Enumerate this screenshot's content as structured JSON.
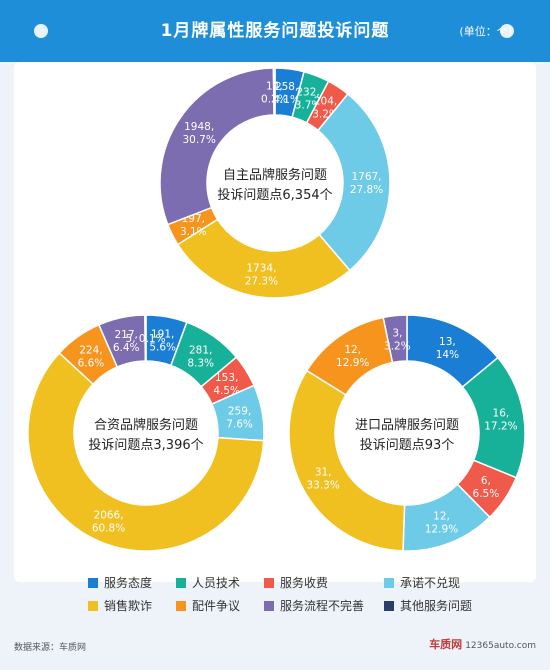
{
  "header": {
    "title": "1月牌属性服务问题投诉问题",
    "unit": "(单位：个)"
  },
  "colors": {
    "服务态度": "#1a7fd4",
    "人员技术": "#17b19a",
    "服务收费": "#f05a4a",
    "承诺不兑现": "#6dcbe8",
    "销售欺诈": "#f0c020",
    "配件争议": "#f7941d",
    "服务流程不完善": "#7b6db0",
    "其他服务问题": "#2b3e6b"
  },
  "chart_data": [
    {
      "type": "pie",
      "center_lines": [
        "自主品牌服务问题",
        "投诉问题点6,354个"
      ],
      "slices": [
        {
          "category": "服务态度",
          "value": 258,
          "label1": "258,",
          "label2": "4.1%"
        },
        {
          "category": "人员技术",
          "value": 232,
          "label1": "232,",
          "label2": "3.7%"
        },
        {
          "category": "服务收费",
          "value": 204,
          "label1": "204,",
          "label2": "3.2%"
        },
        {
          "category": "承诺不兑现",
          "value": 1767,
          "label1": "1767,",
          "label2": "27.8%"
        },
        {
          "category": "销售欺诈",
          "value": 1734,
          "label1": "1734,",
          "label2": "27.3%"
        },
        {
          "category": "配件争议",
          "value": 197,
          "label1": "197,",
          "label2": "3.1%"
        },
        {
          "category": "服务流程不完善",
          "value": 1948,
          "label1": "1948,",
          "label2": "30.7%"
        },
        {
          "category": "其他服务问题",
          "value": 14,
          "label1": "14,",
          "label2": "0.2%"
        }
      ]
    },
    {
      "type": "pie",
      "center_lines": [
        "合资品牌服务问题",
        "投诉问题点3,396个"
      ],
      "slices": [
        {
          "category": "服务态度",
          "value": 191,
          "label1": "191,",
          "label2": "5.6%"
        },
        {
          "category": "人员技术",
          "value": 281,
          "label1": "281,",
          "label2": "8.3%"
        },
        {
          "category": "服务收费",
          "value": 153,
          "label1": "153,",
          "label2": "4.5%"
        },
        {
          "category": "承诺不兑现",
          "value": 259,
          "label1": "259,",
          "label2": "7.6%"
        },
        {
          "category": "销售欺诈",
          "value": 2066,
          "label1": "2066,",
          "label2": "60.8%"
        },
        {
          "category": "配件争议",
          "value": 224,
          "label1": "224,",
          "label2": "6.6%"
        },
        {
          "category": "服务流程不完善",
          "value": 217,
          "label1": "217,",
          "label2": "6.4%"
        },
        {
          "category": "其他服务问题",
          "value": 5,
          "label1": "5, 0.1%",
          "label2": ""
        }
      ]
    },
    {
      "type": "pie",
      "center_lines": [
        "进口品牌服务问题",
        "投诉问题点93个"
      ],
      "slices": [
        {
          "category": "服务态度",
          "value": 13,
          "label1": "13,",
          "label2": "14%"
        },
        {
          "category": "人员技术",
          "value": 16,
          "label1": "16,",
          "label2": "17.2%"
        },
        {
          "category": "服务收费",
          "value": 6,
          "label1": "6,",
          "label2": "6.5%"
        },
        {
          "category": "承诺不兑现",
          "value": 12,
          "label1": "12,",
          "label2": "12.9%"
        },
        {
          "category": "销售欺诈",
          "value": 31,
          "label1": "31,",
          "label2": "33.3%"
        },
        {
          "category": "配件争议",
          "value": 12,
          "label1": "12,",
          "label2": "12.9%"
        },
        {
          "category": "服务流程不完善",
          "value": 3,
          "label1": "3,",
          "label2": "3.2%"
        }
      ]
    }
  ],
  "legend": [
    "服务态度",
    "人员技术",
    "服务收费",
    "承诺不兑现",
    "销售欺诈",
    "配件争议",
    "服务流程不完善",
    "其他服务问题"
  ],
  "footer": {
    "source": "数据来源：车质网",
    "watermark_brand": "车质网",
    "watermark_url": "12365auto.com"
  }
}
